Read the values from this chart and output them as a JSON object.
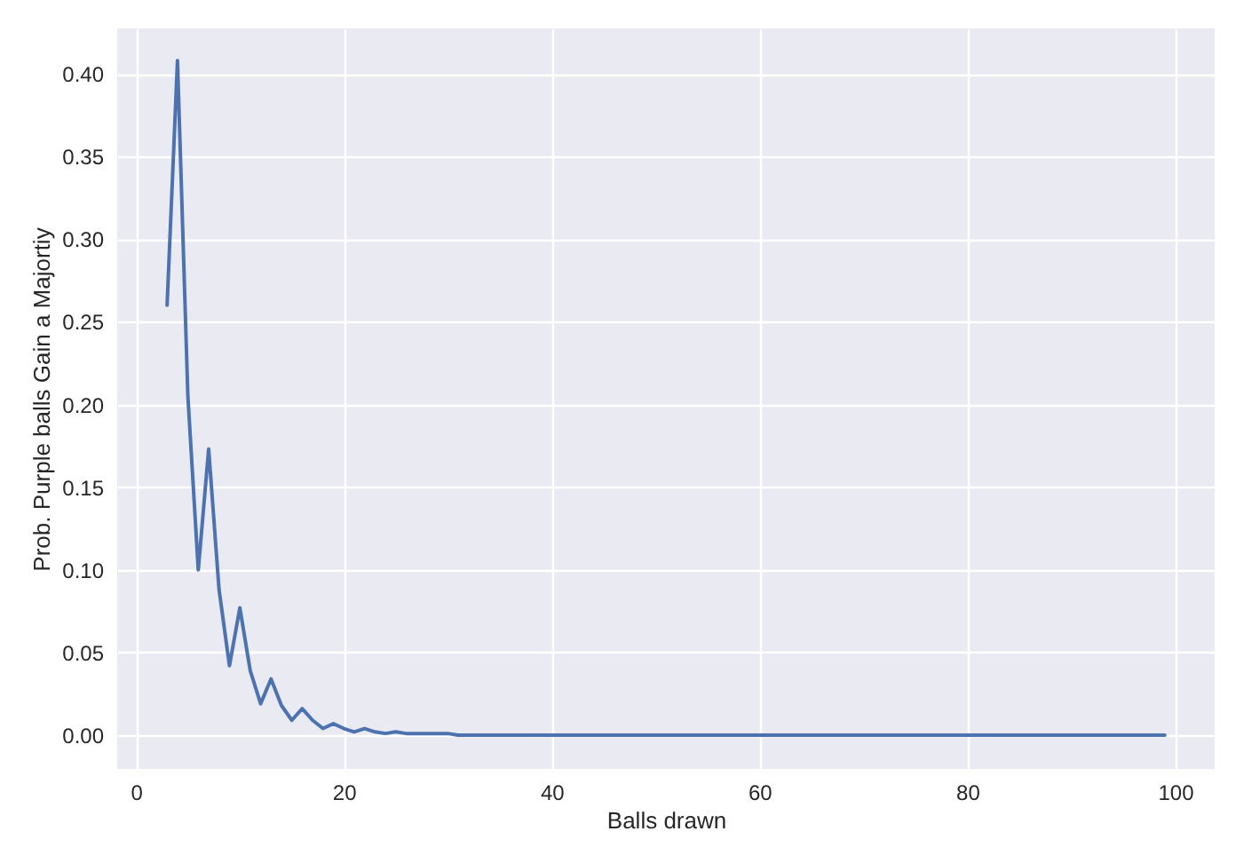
{
  "chart_data": {
    "type": "line",
    "xlabel": "Balls drawn",
    "ylabel": "Prob. Purple balls Gain a Majortiy",
    "x": [
      3,
      4,
      5,
      6,
      7,
      8,
      9,
      10,
      11,
      12,
      13,
      14,
      15,
      16,
      17,
      18,
      19,
      20,
      21,
      22,
      23,
      24,
      25,
      26,
      27,
      28,
      29,
      30,
      31,
      32,
      33,
      34,
      35,
      36,
      37,
      38,
      39,
      40,
      41,
      42,
      43,
      44,
      45,
      46,
      47,
      48,
      49,
      50,
      51,
      52,
      53,
      54,
      55,
      56,
      57,
      58,
      59,
      60,
      61,
      62,
      63,
      64,
      65,
      66,
      67,
      68,
      69,
      70,
      71,
      72,
      73,
      74,
      75,
      76,
      77,
      78,
      79,
      80,
      81,
      82,
      83,
      84,
      85,
      86,
      87,
      88,
      89,
      90,
      91,
      92,
      93,
      94,
      95,
      96,
      97,
      98,
      99
    ],
    "series": [
      {
        "color": "#4c72b0",
        "values": [
          0.26,
          0.408,
          0.205,
          0.1,
          0.173,
          0.088,
          0.042,
          0.077,
          0.039,
          0.019,
          0.034,
          0.018,
          0.009,
          0.016,
          0.009,
          0.004,
          0.007,
          0.004,
          0.002,
          0.004,
          0.002,
          0.001,
          0.002,
          0.001,
          0.001,
          0.001,
          0.001,
          0.001,
          0,
          0,
          0,
          0,
          0,
          0,
          0,
          0,
          0,
          0,
          0,
          0,
          0,
          0,
          0,
          0,
          0,
          0,
          0,
          0,
          0,
          0,
          0,
          0,
          0,
          0,
          0,
          0,
          0,
          0,
          0,
          0,
          0,
          0,
          0,
          0,
          0,
          0,
          0,
          0,
          0,
          0,
          0,
          0,
          0,
          0,
          0,
          0,
          0,
          0,
          0,
          0,
          0,
          0,
          0,
          0,
          0,
          0,
          0,
          0,
          0,
          0,
          0,
          0,
          0,
          0,
          0,
          0,
          0
        ]
      }
    ],
    "xlim": [
      -1.8,
      103.8
    ],
    "xticks": [
      0,
      20,
      40,
      60,
      80,
      100
    ],
    "ylim": [
      -0.0204,
      0.4274
    ],
    "yticks": [
      {
        "value": 0,
        "label": "0.00"
      },
      {
        "value": 0.05,
        "label": "0.05"
      },
      {
        "value": 0.1,
        "label": "0.10"
      },
      {
        "value": 0.15,
        "label": "0.15"
      },
      {
        "value": 0.2,
        "label": "0.20"
      },
      {
        "value": 0.25,
        "label": "0.25"
      },
      {
        "value": 0.3,
        "label": "0.30"
      },
      {
        "value": 0.35,
        "label": "0.35"
      },
      {
        "value": 0.4,
        "label": "0.40"
      }
    ],
    "grid": true
  }
}
